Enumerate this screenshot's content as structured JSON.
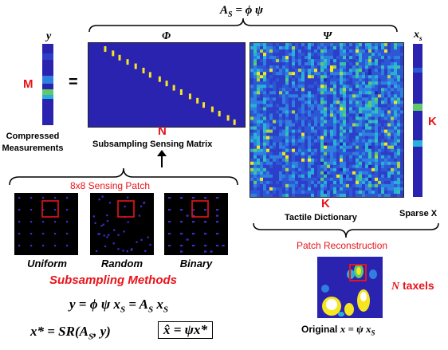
{
  "top_equation": {
    "lhs": "A",
    "sub": "S",
    "rhs": "= ϕ ψ"
  },
  "labels": {
    "y": "y",
    "phi": "Φ",
    "psi": "Ψ",
    "xs_base": "x",
    "xs_sub": "s",
    "equals": "=",
    "M": "M",
    "N": "N",
    "K_right": "K",
    "K_bottom": "K",
    "compressed": "Compressed",
    "measurements": "Measurements",
    "subsampling_matrix": "Subsampling Sensing Matrix",
    "tactile_dictionary": "Tactile Dictionary",
    "sparse_x": "Sparse X",
    "sensing_patch": "8x8 Sensing Patch",
    "patch_reconstruction": "Patch Reconstruction",
    "n_taxels_N": "N",
    "n_taxels_text": "taxels",
    "original_text": "Original",
    "original_eq": "x = ψ x",
    "original_sub": "S"
  },
  "methods": [
    "Uniform",
    "Random",
    "Binary"
  ],
  "methods_title": "Subsampling Methods",
  "equations": {
    "eq1": "y = ϕ ψ x",
    "eq1_sub1": "S",
    "eq1_mid": " = A",
    "eq1_sub2": "S",
    "eq1_end": " x",
    "eq1_sub3": "S",
    "eq2": "x* = SR(A",
    "eq2_sub": "S",
    "eq2_end": ", y)",
    "eq3": "x̂ = ψx*"
  },
  "colors": {
    "matrix_bg": "#2a23b0",
    "yellow": "#f5e61f",
    "green": "#5fc96b",
    "cyan": "#2ab0d8",
    "red": "#e8141b",
    "patch_bg": "#000000",
    "patch_dot": "#3b2fd0"
  }
}
